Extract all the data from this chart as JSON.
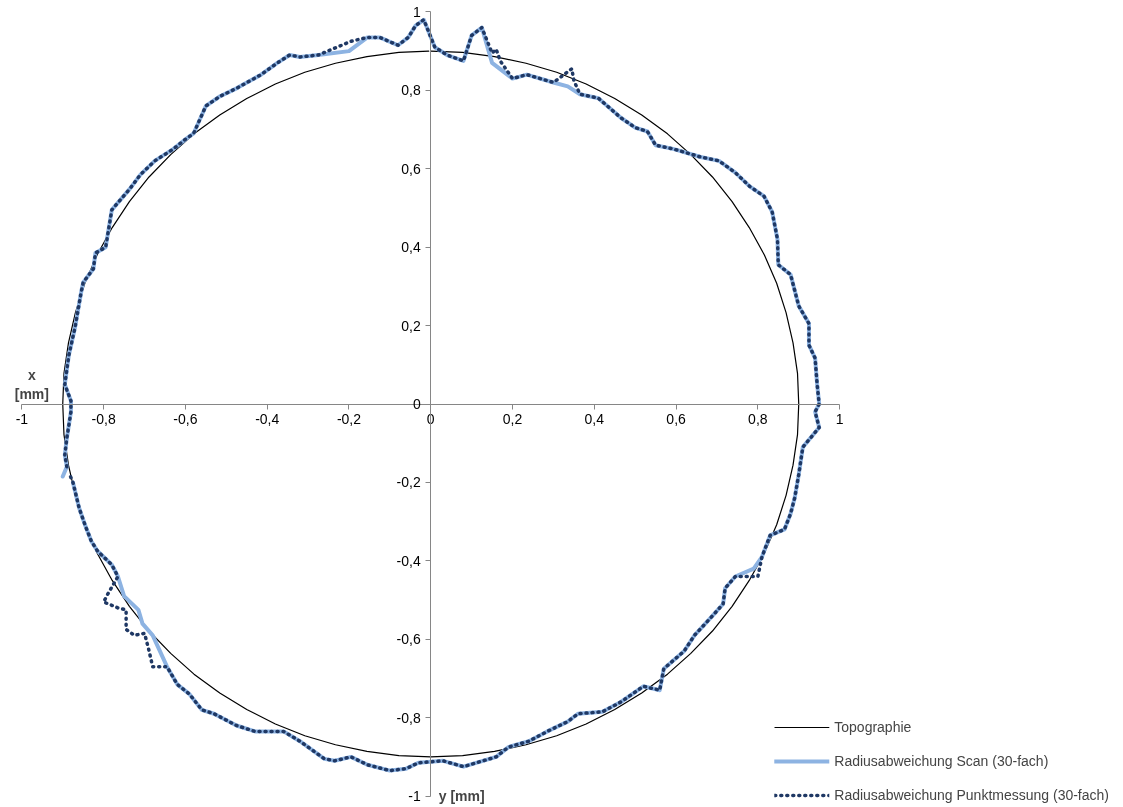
{
  "chart_data": {
    "type": "line",
    "xlabel": "y [mm]",
    "ylabel": "x [mm]",
    "xlim": [
      -1,
      1
    ],
    "ylim": [
      -1,
      1
    ],
    "xticks": [
      -1,
      {
        "value": -0.8,
        "label": "-0,8"
      },
      {
        "value": -0.6,
        "label": "-0,6"
      },
      {
        "value": -0.4,
        "label": "-0,4"
      },
      {
        "value": -0.2,
        "label": "-0,2"
      },
      0,
      {
        "value": 0.2,
        "label": "0,2"
      },
      {
        "value": 0.4,
        "label": "0,4"
      },
      {
        "value": 0.6,
        "label": "0,6"
      },
      {
        "value": 0.8,
        "label": "0,8"
      },
      1
    ],
    "yticks": [
      -1,
      {
        "value": -0.8,
        "label": "-0,8"
      },
      {
        "value": -0.6,
        "label": "-0,6"
      },
      {
        "value": -0.4,
        "label": "-0,4"
      },
      {
        "value": -0.2,
        "label": "-0,2"
      },
      0,
      {
        "value": 0.2,
        "label": "0,2"
      },
      {
        "value": 0.4,
        "label": "0,4"
      },
      {
        "value": 0.6,
        "label": "0,6"
      },
      {
        "value": 0.8,
        "label": "0,8"
      },
      1
    ],
    "grid": false,
    "legend": "bottom right",
    "marker": "none",
    "series": [
      {
        "name": "Topographie",
        "color": "#000000",
        "line_style": "solid",
        "x": [
          0,
          0.078,
          0.156,
          0.233,
          0.308,
          0.38,
          0.45,
          0.516,
          0.579,
          0.636,
          0.689,
          0.737,
          0.779,
          0.816,
          0.846,
          0.869,
          0.886,
          0.897,
          0.9,
          0.897,
          0.886,
          0.869,
          0.846,
          0.816,
          0.779,
          0.737,
          0.689,
          0.636,
          0.579,
          0.516,
          0.45,
          0.38,
          0.308,
          0.233,
          0.156,
          0.078,
          0,
          -0.078,
          -0.156,
          -0.233,
          -0.308,
          -0.38,
          -0.45,
          -0.516,
          -0.579,
          -0.636,
          -0.689,
          -0.737,
          -0.779,
          -0.816,
          -0.846,
          -0.869,
          -0.886,
          -0.897,
          -0.9,
          -0.897,
          -0.886,
          -0.869,
          -0.846,
          -0.816,
          -0.779,
          -0.737,
          -0.689,
          -0.636,
          -0.579,
          -0.516,
          -0.45,
          -0.38,
          -0.308,
          -0.233,
          -0.156,
          -0.078,
          -0.005
        ],
        "values": [
          0.9,
          0.897,
          0.886,
          0.869,
          0.846,
          0.816,
          0.779,
          0.737,
          0.689,
          0.636,
          0.579,
          0.516,
          0.45,
          0.38,
          0.308,
          0.233,
          0.156,
          0.078,
          0,
          -0.078,
          -0.156,
          -0.233,
          -0.308,
          -0.38,
          -0.45,
          -0.516,
          -0.579,
          -0.636,
          -0.689,
          -0.737,
          -0.779,
          -0.816,
          -0.846,
          -0.869,
          -0.886,
          -0.897,
          -0.9,
          -0.897,
          -0.886,
          -0.869,
          -0.846,
          -0.816,
          -0.779,
          -0.737,
          -0.689,
          -0.636,
          -0.579,
          -0.516,
          -0.45,
          -0.38,
          -0.308,
          -0.233,
          -0.156,
          -0.078,
          0,
          0.078,
          0.156,
          0.233,
          0.308,
          0.38,
          0.45,
          0.516,
          0.579,
          0.636,
          0.689,
          0.737,
          0.779,
          0.816,
          0.846,
          0.869,
          0.886,
          0.897,
          0.9
        ]
      },
      {
        "name": "Radiusabweichung Scan (30-fach)",
        "color": "#8db3e2",
        "line_style": "solid",
        "x": [
          -0.9,
          -0.89,
          -0.895,
          -0.89,
          -0.88,
          -0.88,
          -0.895,
          -0.885,
          -0.87,
          -0.855,
          -0.85,
          -0.825,
          -0.82,
          -0.795,
          -0.78,
          -0.735,
          -0.71,
          -0.675,
          -0.63,
          -0.6,
          -0.58,
          -0.55,
          -0.515,
          -0.475,
          -0.415,
          -0.375,
          -0.345,
          -0.32,
          -0.275,
          -0.2,
          -0.155,
          -0.125,
          -0.08,
          -0.055,
          -0.037,
          -0.017,
          0.01,
          0.04,
          0.08,
          0.1,
          0.125,
          0.15,
          0.2,
          0.235,
          0.3,
          0.335,
          0.365,
          0.41,
          0.465,
          0.5,
          0.53,
          0.55,
          0.595,
          0.66,
          0.705,
          0.745,
          0.78,
          0.815,
          0.835,
          0.848,
          0.85,
          0.88,
          0.9,
          0.925,
          0.925,
          0.94,
          0.945,
          0.95,
          0.94,
          0.95,
          0.91,
          0.9,
          0.89,
          0.88,
          0.865,
          0.83,
          0.81,
          0.79,
          0.745,
          0.72,
          0.715,
          0.685,
          0.645,
          0.62,
          0.57,
          0.56,
          0.52,
          0.465,
          0.42,
          0.36,
          0.335,
          0.285,
          0.24,
          0.19,
          0.16,
          0.08,
          0.03,
          -0.03,
          -0.06,
          -0.1,
          -0.155,
          -0.195,
          -0.235,
          -0.26,
          -0.32,
          -0.36,
          -0.43,
          -0.475,
          -0.53,
          -0.56,
          -0.59,
          -0.62,
          -0.645,
          -0.68,
          -0.705,
          -0.715,
          -0.75,
          -0.765,
          -0.78,
          -0.815,
          -0.83,
          -0.845,
          -0.86,
          -0.875
        ],
        "values": [
          -0.185,
          -0.16,
          -0.13,
          -0.087,
          -0.02,
          0.008,
          0.05,
          0.125,
          0.195,
          0.285,
          0.31,
          0.345,
          0.385,
          0.4,
          0.495,
          0.55,
          0.585,
          0.62,
          0.65,
          0.675,
          0.69,
          0.76,
          0.785,
          0.805,
          0.84,
          0.87,
          0.89,
          0.885,
          0.89,
          0.9,
          0.935,
          0.935,
          0.915,
          0.935,
          0.965,
          0.98,
          0.91,
          0.89,
          0.875,
          0.94,
          0.96,
          0.87,
          0.83,
          0.84,
          0.82,
          0.81,
          0.79,
          0.78,
          0.73,
          0.705,
          0.695,
          0.66,
          0.65,
          0.63,
          0.62,
          0.59,
          0.555,
          0.53,
          0.49,
          0.42,
          0.355,
          0.33,
          0.25,
          0.205,
          0.15,
          0.117,
          0.05,
          0,
          -0.02,
          -0.06,
          -0.11,
          -0.18,
          -0.24,
          -0.28,
          -0.32,
          -0.335,
          -0.39,
          -0.42,
          -0.44,
          -0.47,
          -0.51,
          -0.545,
          -0.59,
          -0.63,
          -0.675,
          -0.73,
          -0.72,
          -0.76,
          -0.785,
          -0.79,
          -0.81,
          -0.835,
          -0.86,
          -0.875,
          -0.9,
          -0.925,
          -0.91,
          -0.915,
          -0.93,
          -0.935,
          -0.92,
          -0.9,
          -0.91,
          -0.905,
          -0.86,
          -0.835,
          -0.835,
          -0.82,
          -0.79,
          -0.78,
          -0.74,
          -0.715,
          -0.67,
          -0.59,
          -0.56,
          -0.525,
          -0.49,
          -0.44,
          -0.41,
          -0.375,
          -0.35,
          -0.31,
          -0.265,
          -0.2
        ]
      },
      {
        "name": "Radiusabweichung Punktmessung (30-fach)",
        "color": "#1f3864",
        "line_style": "dotted",
        "x": [
          -0.89,
          -0.895,
          -0.89,
          -0.88,
          -0.88,
          -0.895,
          -0.885,
          -0.87,
          -0.855,
          -0.85,
          -0.825,
          -0.82,
          -0.795,
          -0.78,
          -0.735,
          -0.71,
          -0.675,
          -0.63,
          -0.6,
          -0.58,
          -0.55,
          -0.515,
          -0.475,
          -0.415,
          -0.375,
          -0.345,
          -0.32,
          -0.275,
          -0.195,
          -0.155,
          -0.125,
          -0.08,
          -0.055,
          -0.037,
          -0.017,
          0.01,
          0.04,
          0.08,
          0.1,
          0.125,
          0.15,
          0.16,
          0.17,
          0.2,
          0.235,
          0.3,
          0.345,
          0.35,
          0.365,
          0.41,
          0.465,
          0.5,
          0.53,
          0.55,
          0.595,
          0.66,
          0.705,
          0.745,
          0.78,
          0.815,
          0.835,
          0.848,
          0.85,
          0.88,
          0.9,
          0.925,
          0.925,
          0.94,
          0.945,
          0.95,
          0.94,
          0.95,
          0.91,
          0.9,
          0.89,
          0.88,
          0.865,
          0.83,
          0.81,
          0.8,
          0.745,
          0.72,
          0.715,
          0.685,
          0.645,
          0.62,
          0.57,
          0.56,
          0.52,
          0.465,
          0.42,
          0.36,
          0.335,
          0.285,
          0.24,
          0.19,
          0.16,
          0.08,
          0.03,
          -0.03,
          -0.06,
          -0.1,
          -0.155,
          -0.195,
          -0.235,
          -0.26,
          -0.32,
          -0.36,
          -0.43,
          -0.475,
          -0.53,
          -0.56,
          -0.59,
          -0.62,
          -0.645,
          -0.66,
          -0.68,
          -0.69,
          -0.7,
          -0.725,
          -0.745,
          -0.745,
          -0.765,
          -0.8,
          -0.79,
          -0.765,
          -0.78,
          -0.815,
          -0.83,
          -0.845,
          -0.86,
          -0.875,
          -0.885
        ],
        "values": [
          -0.16,
          -0.13,
          -0.087,
          -0.02,
          0.008,
          0.05,
          0.125,
          0.195,
          0.285,
          0.31,
          0.345,
          0.385,
          0.4,
          0.495,
          0.55,
          0.585,
          0.62,
          0.65,
          0.675,
          0.69,
          0.76,
          0.785,
          0.805,
          0.84,
          0.87,
          0.89,
          0.885,
          0.89,
          0.925,
          0.935,
          0.935,
          0.915,
          0.935,
          0.965,
          0.98,
          0.91,
          0.89,
          0.875,
          0.94,
          0.96,
          0.895,
          0.905,
          0.875,
          0.83,
          0.84,
          0.82,
          0.855,
          0.825,
          0.79,
          0.78,
          0.73,
          0.705,
          0.695,
          0.66,
          0.65,
          0.63,
          0.62,
          0.59,
          0.555,
          0.53,
          0.49,
          0.42,
          0.355,
          0.33,
          0.25,
          0.205,
          0.15,
          0.117,
          0.05,
          0,
          -0.02,
          -0.06,
          -0.11,
          -0.18,
          -0.24,
          -0.28,
          -0.32,
          -0.335,
          -0.39,
          -0.44,
          -0.44,
          -0.47,
          -0.51,
          -0.545,
          -0.59,
          -0.63,
          -0.675,
          -0.73,
          -0.72,
          -0.76,
          -0.785,
          -0.79,
          -0.81,
          -0.835,
          -0.86,
          -0.875,
          -0.9,
          -0.925,
          -0.91,
          -0.915,
          -0.93,
          -0.935,
          -0.92,
          -0.9,
          -0.91,
          -0.905,
          -0.86,
          -0.835,
          -0.835,
          -0.82,
          -0.79,
          -0.78,
          -0.74,
          -0.715,
          -0.67,
          -0.67,
          -0.67,
          -0.625,
          -0.585,
          -0.59,
          -0.575,
          -0.525,
          -0.52,
          -0.505,
          -0.485,
          -0.44,
          -0.41,
          -0.375,
          -0.35,
          -0.31,
          -0.265,
          -0.2,
          -0.175
        ]
      }
    ]
  }
}
